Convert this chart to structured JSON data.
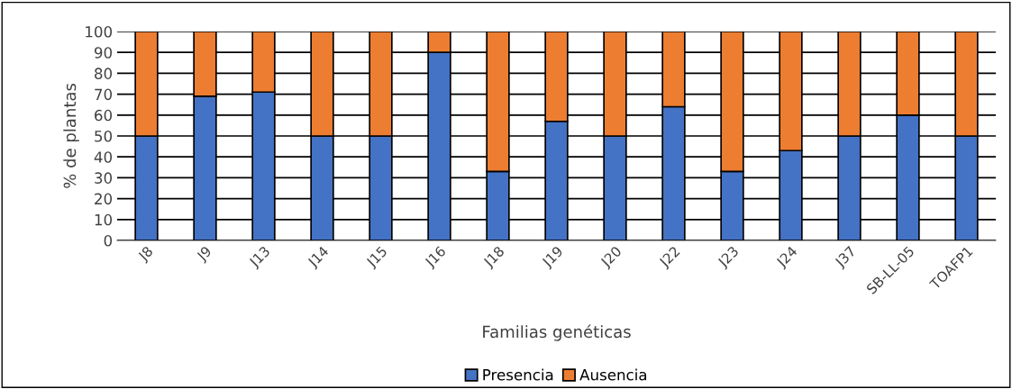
{
  "chart_data": {
    "type": "bar",
    "stacked": true,
    "xlabel": "Familias genéticas",
    "ylabel": "% de plantas",
    "categories": [
      "J8",
      "J9",
      "J13",
      "J14",
      "J15",
      "J16",
      "J18",
      "J19",
      "J20",
      "J22",
      "J23",
      "J24",
      "J37",
      "SB-LL-05",
      "TOAFP1"
    ],
    "series": [
      {
        "name": "Presencia",
        "color": "#4472c4",
        "values": [
          50,
          69,
          71,
          50,
          50,
          90,
          33,
          57,
          50,
          64,
          33,
          43,
          50,
          60,
          50
        ]
      },
      {
        "name": "Ausencia",
        "color": "#ed7d31",
        "values": [
          50,
          31,
          29,
          50,
          50,
          10,
          67,
          43,
          50,
          36,
          67,
          57,
          50,
          40,
          50
        ]
      }
    ],
    "ylim": [
      0,
      100
    ],
    "yticks": [
      0,
      10,
      20,
      30,
      40,
      50,
      60,
      70,
      80,
      90,
      100
    ],
    "grid": "y",
    "legend": "bottom"
  }
}
